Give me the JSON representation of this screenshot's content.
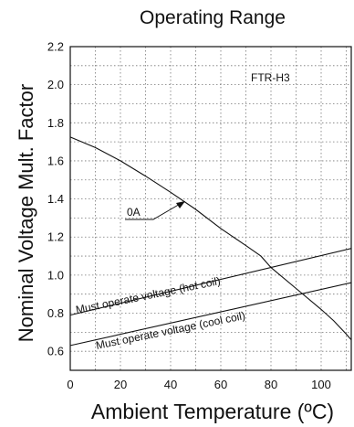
{
  "chart_data": {
    "type": "line",
    "title": "Operating Range",
    "xlabel": "Ambient Temperature (ºC)",
    "ylabel": "Nominal Voltage Mult. Factor",
    "xlim": [
      0,
      112
    ],
    "ylim": [
      0.5,
      2.2
    ],
    "xticks": [
      0,
      20,
      40,
      60,
      80,
      100
    ],
    "yticks": [
      0.6,
      0.8,
      1.0,
      1.2,
      1.4,
      1.6,
      1.8,
      2.0,
      2.2
    ],
    "xtick_labels": [
      "0",
      "20",
      "40",
      "60",
      "80",
      "100"
    ],
    "ytick_labels": [
      "0.6",
      "0.8",
      "1.0",
      "1.2",
      "1.4",
      "1.6",
      "1.8",
      "2.0",
      "2.2"
    ],
    "grid": true,
    "model_label": "FTR-H3",
    "series": [
      {
        "name": "0A",
        "x": [
          0,
          10,
          20,
          30,
          40,
          50,
          60,
          70,
          76,
          80,
          90,
          100,
          105,
          110,
          112
        ],
        "y": [
          1.725,
          1.67,
          1.6,
          1.52,
          1.435,
          1.345,
          1.245,
          1.155,
          1.1,
          1.04,
          0.93,
          0.82,
          0.76,
          0.69,
          0.66
        ]
      },
      {
        "name": "Must operate voltage (hot coil)",
        "x": [
          0,
          112
        ],
        "y": [
          0.79,
          1.14
        ]
      },
      {
        "name": "Must operate voltage (cool coil)",
        "x": [
          0,
          112
        ],
        "y": [
          0.63,
          0.96
        ]
      }
    ]
  }
}
